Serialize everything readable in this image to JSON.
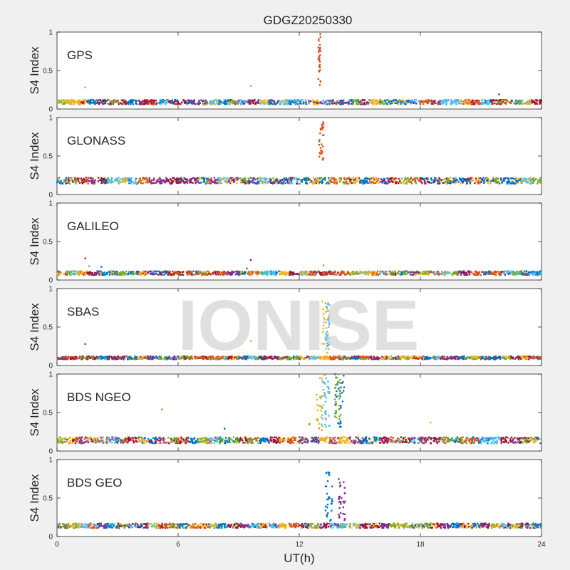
{
  "chart_data": {
    "type": "scatter",
    "title": "GDGZ20250330",
    "xlabel": "UT(h)",
    "ylabel": "S4 Index",
    "xlim": [
      0,
      24
    ],
    "ylim": [
      0,
      1
    ],
    "xticks": [
      "0",
      "6",
      "12",
      "18",
      "24"
    ],
    "yticks": [
      "0",
      "0.5",
      "1"
    ],
    "watermark": "IONISE",
    "panels": [
      {
        "label": "GPS",
        "baseline": 0.09,
        "spread": 0.03,
        "spikes": [
          {
            "x": 13.0,
            "width": 0.12,
            "y_min": 0.3,
            "y_max": 1.0,
            "color": "#d95319"
          }
        ],
        "outliers": [
          {
            "x": 1.4,
            "y": 0.28
          },
          {
            "x": 9.6,
            "y": 0.3
          },
          {
            "x": 21.9,
            "y": 0.19
          }
        ]
      },
      {
        "label": "GLONASS",
        "baseline": 0.18,
        "spread": 0.04,
        "spikes": [
          {
            "x": 13.1,
            "width": 0.25,
            "y_min": 0.45,
            "y_max": 0.95,
            "color": "#d95319"
          }
        ],
        "outliers": []
      },
      {
        "label": "GALILEO",
        "baseline": 0.09,
        "spread": 0.025,
        "spikes": [],
        "outliers": [
          {
            "x": 1.4,
            "y": 0.28
          },
          {
            "x": 9.6,
            "y": 0.26
          },
          {
            "x": 1.6,
            "y": 0.18
          },
          {
            "x": 2.2,
            "y": 0.17
          },
          {
            "x": 9.4,
            "y": 0.15
          },
          {
            "x": 13.2,
            "y": 0.19
          }
        ]
      },
      {
        "label": "SBAS",
        "baseline": 0.1,
        "spread": 0.02,
        "spikes": [
          {
            "x": 13.3,
            "width": 0.35,
            "y_min": 0.15,
            "y_max": 0.87,
            "color": "#edb120"
          },
          {
            "x": 13.4,
            "width": 0.25,
            "y_min": 0.2,
            "y_max": 0.85,
            "color": "#4dbeee"
          }
        ],
        "outliers": [
          {
            "x": 1.4,
            "y": 0.28
          },
          {
            "x": 9.6,
            "y": 0.32
          }
        ]
      },
      {
        "label": "BDS NGEO",
        "baseline": 0.14,
        "spread": 0.04,
        "spikes": [
          {
            "x": 13.1,
            "width": 0.5,
            "y_min": 0.25,
            "y_max": 1.0,
            "color": "#edb120"
          },
          {
            "x": 13.3,
            "width": 0.4,
            "y_min": 0.3,
            "y_max": 0.95,
            "color": "#4dbeee"
          },
          {
            "x": 14.0,
            "width": 0.45,
            "y_min": 0.3,
            "y_max": 1.0,
            "color": "#0072bd"
          },
          {
            "x": 13.9,
            "width": 0.35,
            "y_min": 0.4,
            "y_max": 1.0,
            "color": "#77ac30"
          }
        ],
        "outliers": [
          {
            "x": 5.2,
            "y": 0.54
          },
          {
            "x": 8.3,
            "y": 0.29
          },
          {
            "x": 18.5,
            "y": 0.37
          },
          {
            "x": 12.5,
            "y": 0.35
          }
        ]
      },
      {
        "label": "BDS GEO",
        "baseline": 0.14,
        "spread": 0.03,
        "spikes": [
          {
            "x": 13.5,
            "width": 0.4,
            "y_min": 0.2,
            "y_max": 0.85,
            "color": "#0072bd"
          },
          {
            "x": 14.1,
            "width": 0.35,
            "y_min": 0.2,
            "y_max": 0.75,
            "color": "#7e2f8e"
          }
        ],
        "outliers": []
      }
    ]
  },
  "colors": {
    "series": [
      "#0072bd",
      "#d95319",
      "#edb120",
      "#7e2f8e",
      "#77ac30",
      "#4dbeee",
      "#a2142f"
    ]
  }
}
